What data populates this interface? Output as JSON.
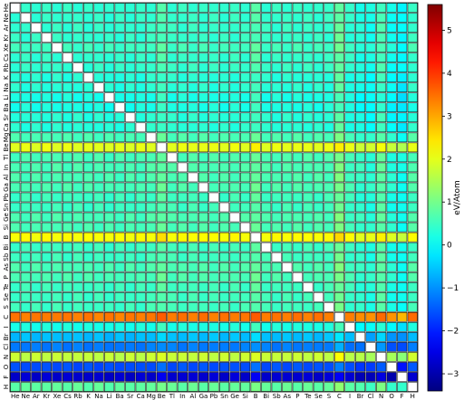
{
  "chart_data": {
    "type": "heatmap",
    "title": "",
    "elements": [
      "He",
      "Ne",
      "Ar",
      "Kr",
      "Xe",
      "Cs",
      "Rb",
      "K",
      "Na",
      "Li",
      "Ba",
      "Sr",
      "Ca",
      "Mg",
      "Be",
      "Tl",
      "In",
      "Al",
      "Ga",
      "Pb",
      "Sn",
      "Ge",
      "Si",
      "B",
      "Bi",
      "Sb",
      "As",
      "P",
      "Te",
      "Se",
      "S",
      "C",
      "I",
      "Br",
      "Cl",
      "N",
      "O",
      "F",
      "H"
    ],
    "row_order": "same as columns, top to bottom",
    "diagonal": "blank (white)",
    "element_base_values": {
      "He": 0.4,
      "Ne": 0.4,
      "Ar": 0.4,
      "Kr": 0.4,
      "Xe": 0.5,
      "Cs": 0.4,
      "Rb": 0.4,
      "K": 0.3,
      "Na": 0.3,
      "Li": 0.2,
      "Ba": 0.2,
      "Sr": 0.3,
      "Ca": 0.3,
      "Mg": 0.6,
      "Be": 2.0,
      "Tl": 0.6,
      "In": 0.6,
      "Al": 0.6,
      "Ga": 0.6,
      "Pb": 0.5,
      "Sn": 0.5,
      "Ge": 0.6,
      "Si": 0.6,
      "B": 2.2,
      "Bi": 0.5,
      "Sb": 0.5,
      "As": 0.6,
      "P": 0.6,
      "Te": 0.5,
      "Se": 0.5,
      "S": 0.5,
      "C": 3.4,
      "I": 0.2,
      "Br": -0.6,
      "Cl": -1.2,
      "N": 1.7,
      "O": -1.6,
      "F": -2.7,
      "H": 0.8
    },
    "colorbar": {
      "label": "eV/Atom",
      "min": -3.4,
      "max": 5.6,
      "ticks": [
        -3,
        -2,
        -1,
        0,
        1,
        2,
        3,
        4,
        5
      ],
      "tick_labels": [
        "−3",
        "−2",
        "−1",
        "0",
        "1",
        "2",
        "3",
        "4",
        "5"
      ],
      "colormap": "jet"
    },
    "grid": true
  }
}
